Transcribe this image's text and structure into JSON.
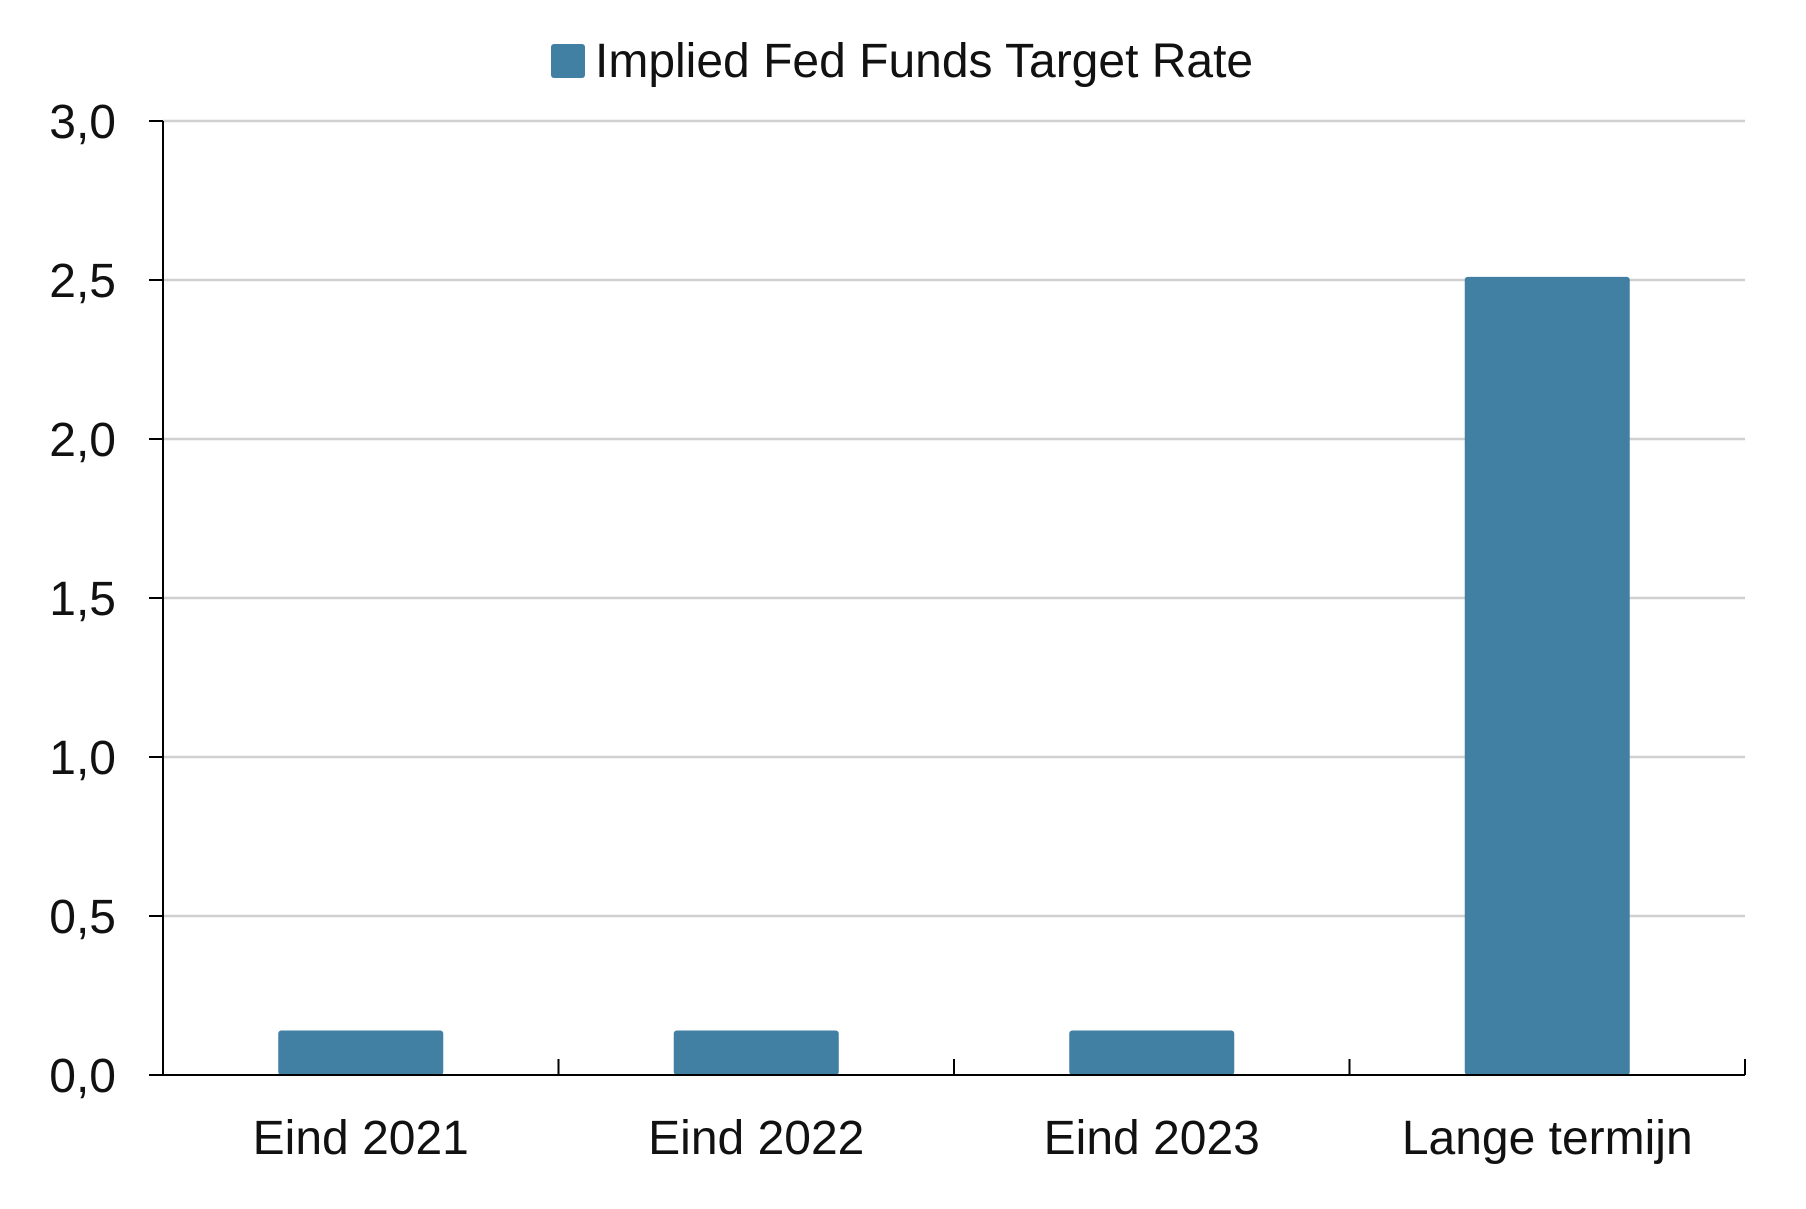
{
  "chart_data": {
    "type": "bar",
    "categories": [
      "Eind 2021",
      "Eind 2022",
      "Eind 2023",
      "Lange termijn"
    ],
    "series": [
      {
        "name": "Implied Fed Funds Target Rate",
        "values": [
          0.14,
          0.14,
          0.14,
          2.51
        ],
        "color": "#417fa3"
      }
    ],
    "ylim": [
      0,
      3.0
    ],
    "yticks": [
      "0,0",
      "0,5",
      "1,0",
      "1,5",
      "2,0",
      "2,5",
      "3,0"
    ],
    "ytick_values": [
      0,
      0.5,
      1.0,
      1.5,
      2.0,
      2.5,
      3.0
    ],
    "grid": true,
    "legend_position": "top-center",
    "title": "",
    "xlabel": "",
    "ylabel": ""
  }
}
